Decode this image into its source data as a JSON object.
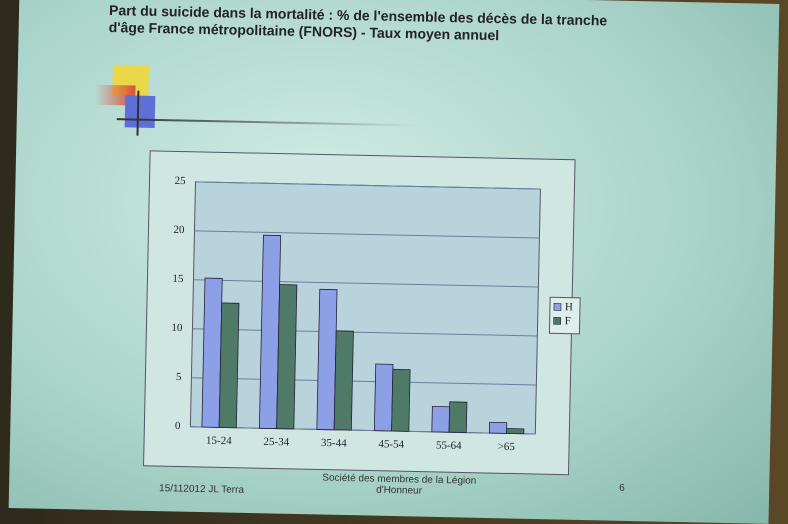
{
  "chart_data": {
    "type": "bar",
    "title": "Part du suicide dans la mortalité : % de l'ensemble des décès de la tranche d'âge France métropolitaine (FNORS) - Taux moyen annuel",
    "categories": [
      "15-24",
      "25-34",
      "35-44",
      "45-54",
      "55-64",
      ">65"
    ],
    "series": [
      {
        "name": "H",
        "color": "#8d9fe6",
        "values": [
          15.2,
          19.7,
          14.3,
          6.8,
          2.6,
          1.1
        ]
      },
      {
        "name": "F",
        "color": "#4f7a68",
        "values": [
          12.7,
          14.7,
          10.1,
          6.3,
          3.1,
          0.5
        ]
      }
    ],
    "ylim": [
      0,
      25
    ],
    "yticks": [
      0,
      5,
      10,
      15,
      20,
      25
    ],
    "grid": true,
    "legend": "right",
    "footer_left": "15/112012 JL Terra",
    "footer_center": "Société des membres de la Légion d'Honneur",
    "page_number": "6"
  }
}
